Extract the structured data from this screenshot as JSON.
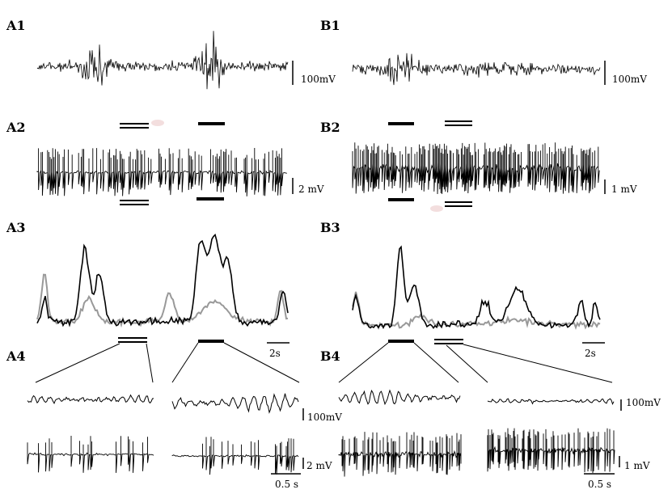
{
  "panels": {
    "A1": "A1",
    "A2": "A2",
    "A3": "A3",
    "A4": "A4",
    "B1": "B1",
    "B2": "B2",
    "B3": "B3",
    "B4": "B4"
  },
  "scale_bars": {
    "a1": "100mV",
    "a2": "2 mV",
    "a3": "2s",
    "a4_lfp": "100mV",
    "a4_units": "2 mV",
    "a4_time": "0.5 s",
    "b1": "100mV",
    "b2": "1 mV",
    "b3": "2s",
    "b4_lfp": "100mV",
    "b4_units": "1 mV",
    "b4_time": "0.5 s"
  },
  "colors": {
    "trace": "#000000",
    "trace_gray": "#999999",
    "artifact": "#f3dede"
  }
}
